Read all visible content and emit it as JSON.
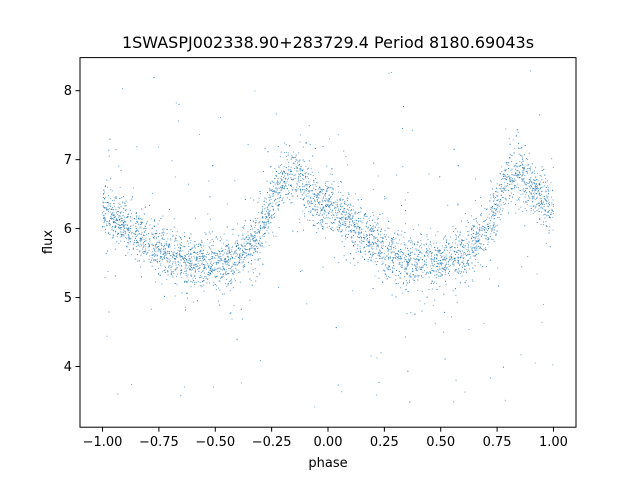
{
  "chart_data": {
    "type": "scatter",
    "title": "1SWASPJ002338.90+283729.4 Period 8180.69043s",
    "xlabel": "phase",
    "ylabel": "flux",
    "xlim": [
      -1.1,
      1.1
    ],
    "ylim": [
      3.12,
      8.48
    ],
    "xticks": [
      -1.0,
      -0.75,
      -0.5,
      -0.25,
      0.0,
      0.25,
      0.5,
      0.75,
      1.0
    ],
    "xtick_labels": [
      "−1.00",
      "−0.75",
      "−0.50",
      "−0.25",
      "0.00",
      "0.25",
      "0.50",
      "0.75",
      "1.00"
    ],
    "yticks": [
      4,
      5,
      6,
      7,
      8
    ],
    "ytick_labels": [
      "4",
      "5",
      "6",
      "7",
      "8"
    ],
    "grid": false,
    "legend": "none",
    "marker_color": "#1f77b4",
    "series": [
      {
        "light_curve_profile": {
          "x": [
            -1.0,
            -0.9,
            -0.8,
            -0.7,
            -0.6,
            -0.5,
            -0.4,
            -0.3,
            -0.25,
            -0.2,
            -0.15,
            -0.1,
            -0.05,
            0.0,
            0.1,
            0.2,
            0.3,
            0.4,
            0.5,
            0.6,
            0.7,
            0.75,
            0.8,
            0.85,
            0.9,
            0.95,
            1.0
          ],
          "y": [
            6.3,
            6.05,
            5.8,
            5.62,
            5.52,
            5.48,
            5.58,
            5.95,
            6.35,
            6.7,
            6.8,
            6.6,
            6.4,
            6.3,
            6.05,
            5.8,
            5.62,
            5.52,
            5.48,
            5.58,
            5.95,
            6.35,
            6.7,
            6.8,
            6.6,
            6.4,
            6.3
          ]
        },
        "scatter_sd": 0.18,
        "outlier_range": [
          3.4,
          8.3
        ]
      }
    ]
  }
}
